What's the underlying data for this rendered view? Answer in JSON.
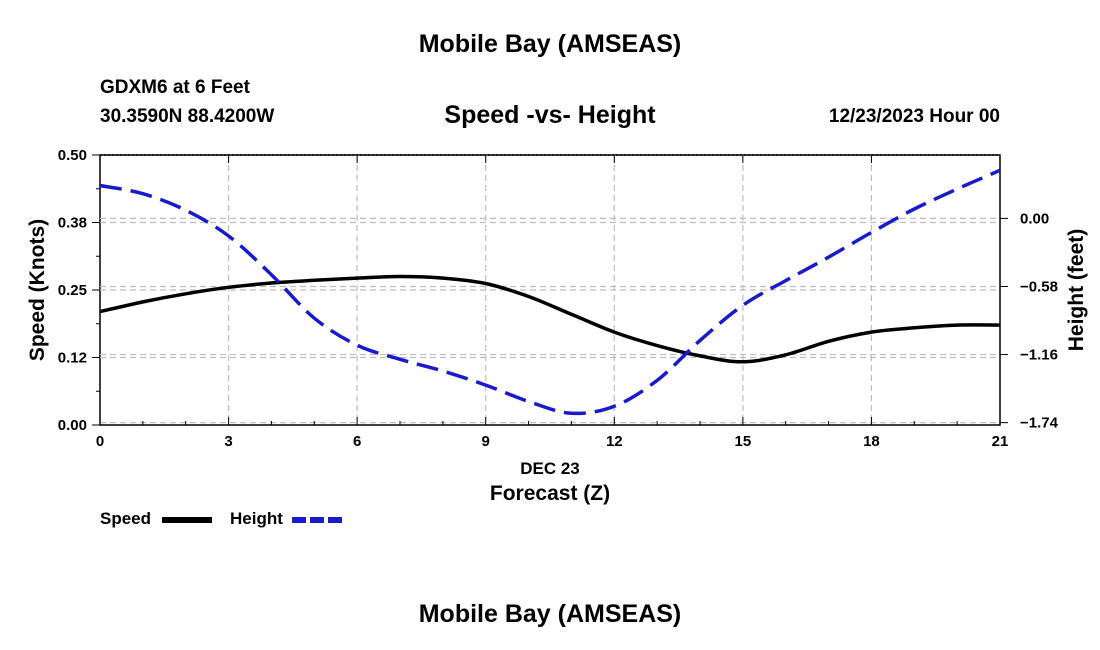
{
  "page": {
    "title_top": "Mobile Bay (AMSEAS)",
    "title_bottom": "Mobile Bay (AMSEAS)",
    "station": "GDXM6 at 6 Feet",
    "coords": "30.3590N  88.4200W",
    "subtitle": "Speed -vs- Height",
    "datetime": "12/23/2023 Hour 00"
  },
  "legend": [
    {
      "label": "Speed",
      "color": "#000000",
      "dash": "solid"
    },
    {
      "label": "Height",
      "color": "#1a1acc",
      "dash": "dashed"
    }
  ],
  "chart_data": {
    "type": "line",
    "title": "Speed -vs- Height",
    "xlabel": "Forecast (Z)",
    "xsublabel": "DEC 23",
    "x_ticks": [
      0,
      3,
      6,
      9,
      12,
      15,
      18,
      21
    ],
    "xlim": [
      0,
      21
    ],
    "ylabel_left": "Speed (Knots)",
    "ylim_left": [
      0,
      0.5
    ],
    "y_ticks_left": [
      {
        "value": 0.0,
        "label": "0.00"
      },
      {
        "value": 0.125,
        "label": "0.12"
      },
      {
        "value": 0.25,
        "label": "0.25"
      },
      {
        "value": 0.375,
        "label": "0.38"
      },
      {
        "value": 0.5,
        "label": "0.50"
      }
    ],
    "ylabel_right": "Height (feet)",
    "ylim_right": [
      -1.76,
      0.54
    ],
    "y_ticks_right": [
      {
        "value": 0.0,
        "label": "0.00"
      },
      {
        "value": -0.58,
        "label": "−0.58"
      },
      {
        "value": -1.16,
        "label": "−1.16"
      },
      {
        "value": -1.74,
        "label": "−1.74"
      }
    ],
    "grid": true,
    "series": [
      {
        "name": "Speed",
        "axis": "left",
        "color": "#000000",
        "dash": "solid",
        "x": [
          0,
          1,
          2,
          3,
          4,
          5,
          6,
          7,
          8,
          9,
          10,
          11,
          12,
          13,
          14,
          15,
          16,
          17,
          18,
          19,
          20,
          21
        ],
        "values": [
          0.21,
          0.228,
          0.243,
          0.255,
          0.263,
          0.268,
          0.272,
          0.275,
          0.272,
          0.262,
          0.238,
          0.205,
          0.172,
          0.147,
          0.128,
          0.117,
          0.13,
          0.155,
          0.172,
          0.18,
          0.185,
          0.185
        ]
      },
      {
        "name": "Height",
        "axis": "right",
        "color": "#1a1acc",
        "dash": "dashed",
        "x": [
          0,
          1,
          2,
          3,
          4,
          5,
          6,
          7,
          8,
          9,
          10,
          11,
          12,
          13,
          14,
          15,
          16,
          17,
          18,
          19,
          20,
          21
        ],
        "values": [
          0.28,
          0.21,
          0.07,
          -0.15,
          -0.48,
          -0.85,
          -1.08,
          -1.2,
          -1.3,
          -1.42,
          -1.56,
          -1.66,
          -1.6,
          -1.38,
          -1.04,
          -0.74,
          -0.53,
          -0.33,
          -0.12,
          0.08,
          0.25,
          0.41
        ]
      }
    ]
  }
}
